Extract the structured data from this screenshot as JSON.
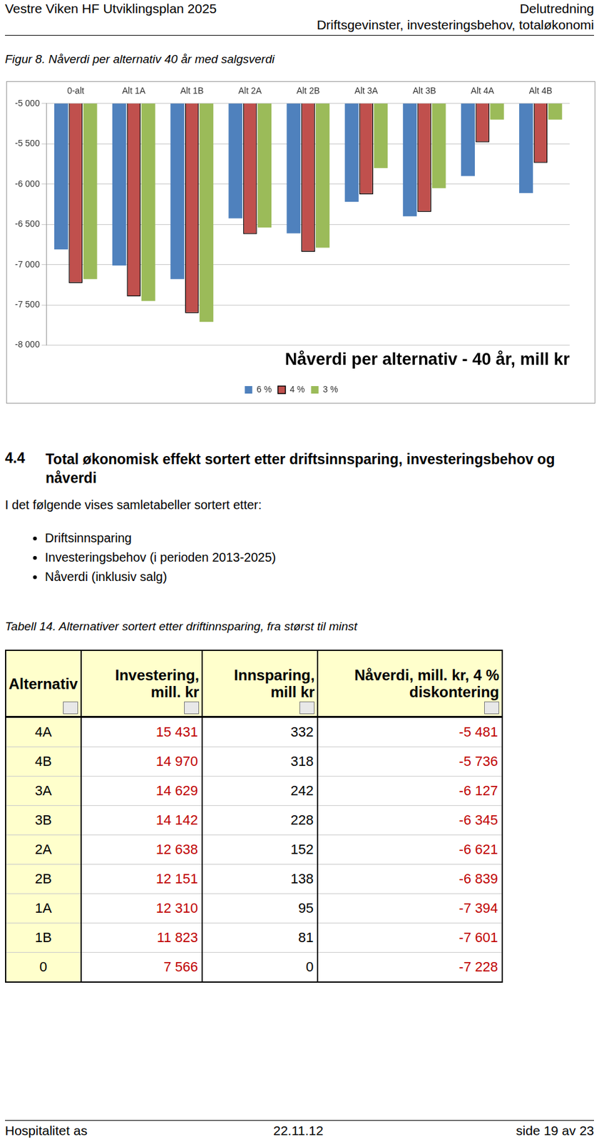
{
  "header": {
    "left": "Vestre Viken HF Utviklingsplan 2025",
    "right_top": "Delutredning",
    "right_bottom": "Driftsgevinster, investeringsbehov, totaløkonomi"
  },
  "figure_caption": "Figur 8. Nåverdi per alternativ 40 år med salgsverdi",
  "chart_data": {
    "type": "bar",
    "title": "Nåverdi per alternativ - 40 år, mill kr",
    "categories": [
      "0-alt",
      "Alt 1A",
      "Alt 1B",
      "Alt 2A",
      "Alt 2B",
      "Alt 3A",
      "Alt 3B",
      "Alt 4A",
      "Alt 4B"
    ],
    "series": [
      {
        "name": "6 %",
        "color": "#4f81bd",
        "values": [
          -6810,
          -7010,
          -7180,
          -6425,
          -6610,
          -6220,
          -6400,
          -5900,
          -6110
        ]
      },
      {
        "name": "4 %",
        "color": "#c0504d",
        "values": [
          -7228,
          -7394,
          -7601,
          -6621,
          -6839,
          -6127,
          -6345,
          -5481,
          -5736
        ]
      },
      {
        "name": "3 %",
        "color": "#9bbb59",
        "values": [
          -7180,
          -7450,
          -7710,
          -6540,
          -6790,
          -5800,
          -6050,
          -5200,
          -5200
        ]
      }
    ],
    "ylim": [
      -8000,
      -5000
    ],
    "yticks": [
      {
        "value": -8000,
        "label": "-8 000"
      },
      {
        "value": -7500,
        "label": "-7 500"
      },
      {
        "value": -7000,
        "label": "-7 000"
      },
      {
        "value": -6500,
        "label": "-6 500"
      },
      {
        "value": -6000,
        "label": "-6 000"
      },
      {
        "value": -5500,
        "label": "-5 500"
      },
      {
        "value": -5000,
        "label": "-5 000"
      }
    ],
    "grid": true,
    "legend": "bottom"
  },
  "section": {
    "number": "4.4",
    "title": "Total økonomisk effekt sortert etter driftsinnsparing, investeringsbehov og nåverdi",
    "intro": "I det følgende vises samletabeller sortert etter:",
    "bullets": [
      "Driftsinnsparing",
      "Investeringsbehov (i perioden 2013-2025)",
      "Nåverdi (inklusiv salg)"
    ]
  },
  "table_caption": "Tabell 14. Alternativer sortert etter driftinnsparing, fra størst til minst",
  "table": {
    "columns": [
      "Alternativ",
      "Investering, mill. kr",
      "Innsparing, mill kr",
      "Nåverdi, mill. kr, 4 % diskontering"
    ],
    "rows": [
      [
        "4A",
        "15 431",
        "332",
        "-5 481"
      ],
      [
        "4B",
        "14 970",
        "318",
        "-5 736"
      ],
      [
        "3A",
        "14 629",
        "242",
        "-6 127"
      ],
      [
        "3B",
        "14 142",
        "228",
        "-6 345"
      ],
      [
        "2A",
        "12 638",
        "152",
        "-6 621"
      ],
      [
        "2B",
        "12 151",
        "138",
        "-6 839"
      ],
      [
        "1A",
        "12 310",
        "95",
        "-7 394"
      ],
      [
        "1B",
        "11 823",
        "81",
        "-7 601"
      ],
      [
        "0",
        "7 566",
        "0",
        "-7 228"
      ]
    ]
  },
  "footer": {
    "left": "Hospitalitet as",
    "center": "22.11.12",
    "right": "side 19 av 23"
  }
}
